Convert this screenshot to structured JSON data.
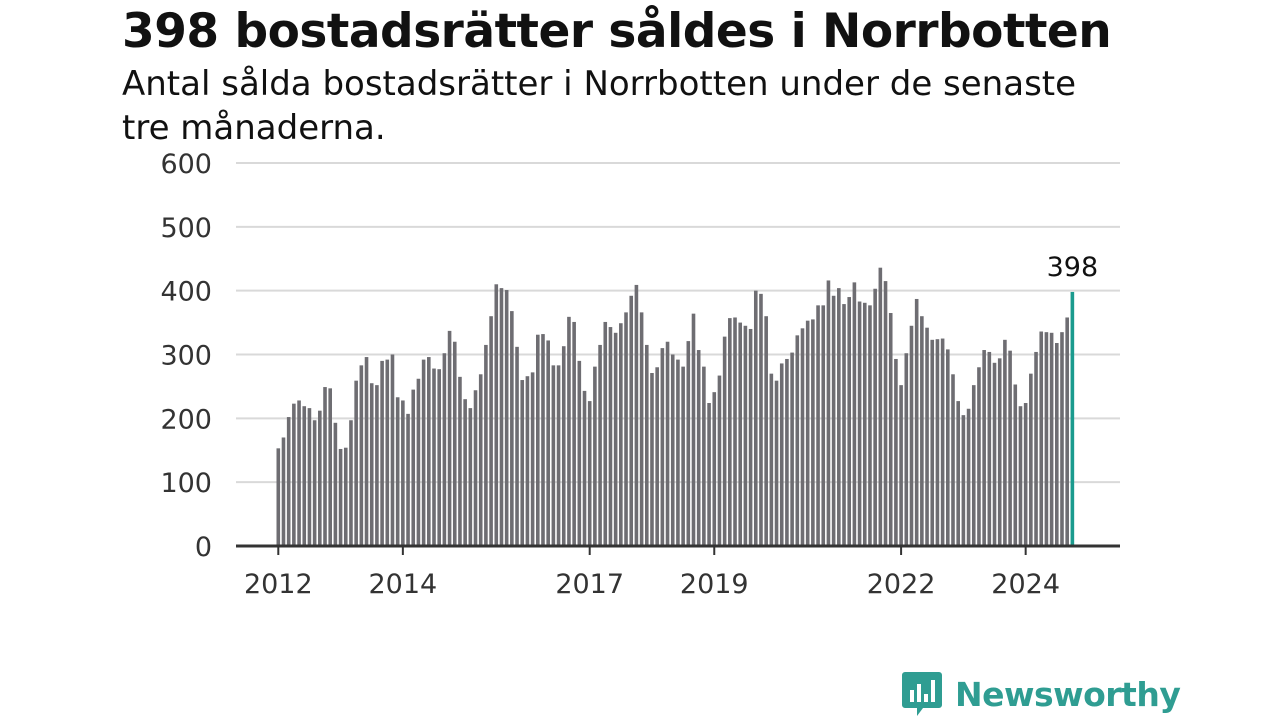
{
  "title": "398 bostadsrätter såldes i Norrbotten",
  "subtitle": "Antal sålda bostadsrätter i Norrbotten under de senaste tre månaderna.",
  "brand": {
    "name": "Newsworthy",
    "icon": "newsworthy-logo-icon",
    "color": "#2f9d92"
  },
  "colors": {
    "bar": "#6e6d72",
    "highlight": "#1b9b8e",
    "grid": "#d9d9d9",
    "axis": "#333333"
  },
  "chart_data": {
    "type": "bar",
    "title": "398 bostadsrätter såldes i Norrbotten",
    "subtitle": "Antal sålda bostadsrätter i Norrbotten under de senaste tre månaderna.",
    "xlabel": "",
    "ylabel": "",
    "ylim": [
      0,
      600
    ],
    "yticks": [
      0,
      100,
      200,
      300,
      400,
      500,
      600
    ],
    "grid": true,
    "xtick_labels": [
      "2012",
      "2014",
      "2017",
      "2019",
      "2022",
      "2024"
    ],
    "xtick_dates": [
      "2012-01",
      "2014-01",
      "2017-01",
      "2019-01",
      "2022-01",
      "2024-01"
    ],
    "x_start": "2012-01",
    "frequency": "monthly",
    "values": [
      153,
      170,
      202,
      223,
      228,
      219,
      216,
      197,
      212,
      249,
      247,
      193,
      152,
      154,
      197,
      259,
      283,
      296,
      255,
      252,
      290,
      292,
      300,
      233,
      228,
      207,
      245,
      262,
      292,
      296,
      278,
      277,
      302,
      337,
      320,
      265,
      230,
      216,
      244,
      269,
      315,
      360,
      410,
      404,
      401,
      368,
      312,
      260,
      266,
      272,
      331,
      332,
      322,
      283,
      283,
      313,
      359,
      351,
      290,
      243,
      227,
      281,
      315,
      351,
      343,
      334,
      349,
      366,
      392,
      409,
      366,
      315,
      271,
      280,
      310,
      320,
      300,
      292,
      281,
      321,
      364,
      307,
      281,
      224,
      241,
      267,
      328,
      357,
      358,
      350,
      345,
      340,
      400,
      395,
      360,
      270,
      259,
      286,
      293,
      303,
      330,
      341,
      353,
      355,
      377,
      377,
      416,
      392,
      404,
      379,
      390,
      413,
      383,
      381,
      377,
      403,
      436,
      415,
      365,
      293,
      252,
      302,
      345,
      387,
      360,
      342,
      323,
      324,
      325,
      308,
      269,
      227,
      205,
      215,
      252,
      280,
      307,
      304,
      287,
      294,
      323,
      306,
      253,
      219,
      224,
      270,
      304,
      336,
      335,
      334,
      318,
      335,
      358,
      398
    ],
    "highlight": {
      "date": "2024-10",
      "value": 398,
      "label": "398"
    }
  }
}
